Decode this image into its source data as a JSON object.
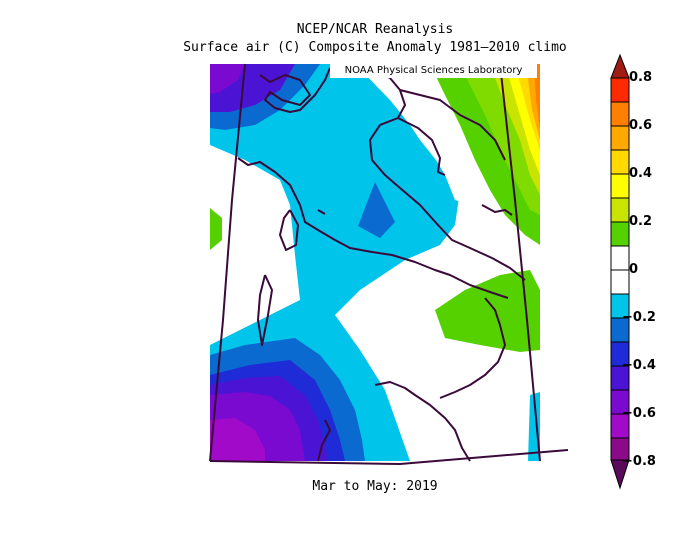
{
  "title": {
    "line1": "NCEP/NCAR Reanalysis",
    "line2": "Surface air (C) Composite Anomaly 1981–2010 climo"
  },
  "credit": "NOAA Physical Sciences Laboratory",
  "period": "Mar to May: 2019",
  "colorbar": {
    "labels": [
      "0.8",
      "0.6",
      "0.4",
      "0.2",
      "0",
      "−0.2",
      "−0.4",
      "−0.6",
      "−0.8"
    ],
    "colors_top_to_bottom": [
      "#a01b14",
      "#ff2a00",
      "#ff7f00",
      "#ffa800",
      "#ffd900",
      "#ffff00",
      "#c9e400",
      "#80dc00",
      "#55d100",
      "#ffffff",
      "#ffffff",
      "#00c4ea",
      "#0a6ad0",
      "#1f2bd6",
      "#4b14d4",
      "#7a0ad0",
      "#a20ac9",
      "#8a0a8a"
    ]
  },
  "colors": {
    "purple_dark": "#a20ac9",
    "purple": "#7a0ad0",
    "violet": "#4b14d4",
    "blue_dark": "#1f2bd6",
    "blue": "#0a6ad0",
    "cyan": "#00c4ea",
    "green": "#55d100",
    "lime": "#80dc00",
    "yellow_green": "#c9e400",
    "yellow": "#ffff00",
    "gold": "#ffd900",
    "orange": "#ffa800",
    "red_orange": "#ff7f00",
    "coastline": "#3a0a3a"
  }
}
